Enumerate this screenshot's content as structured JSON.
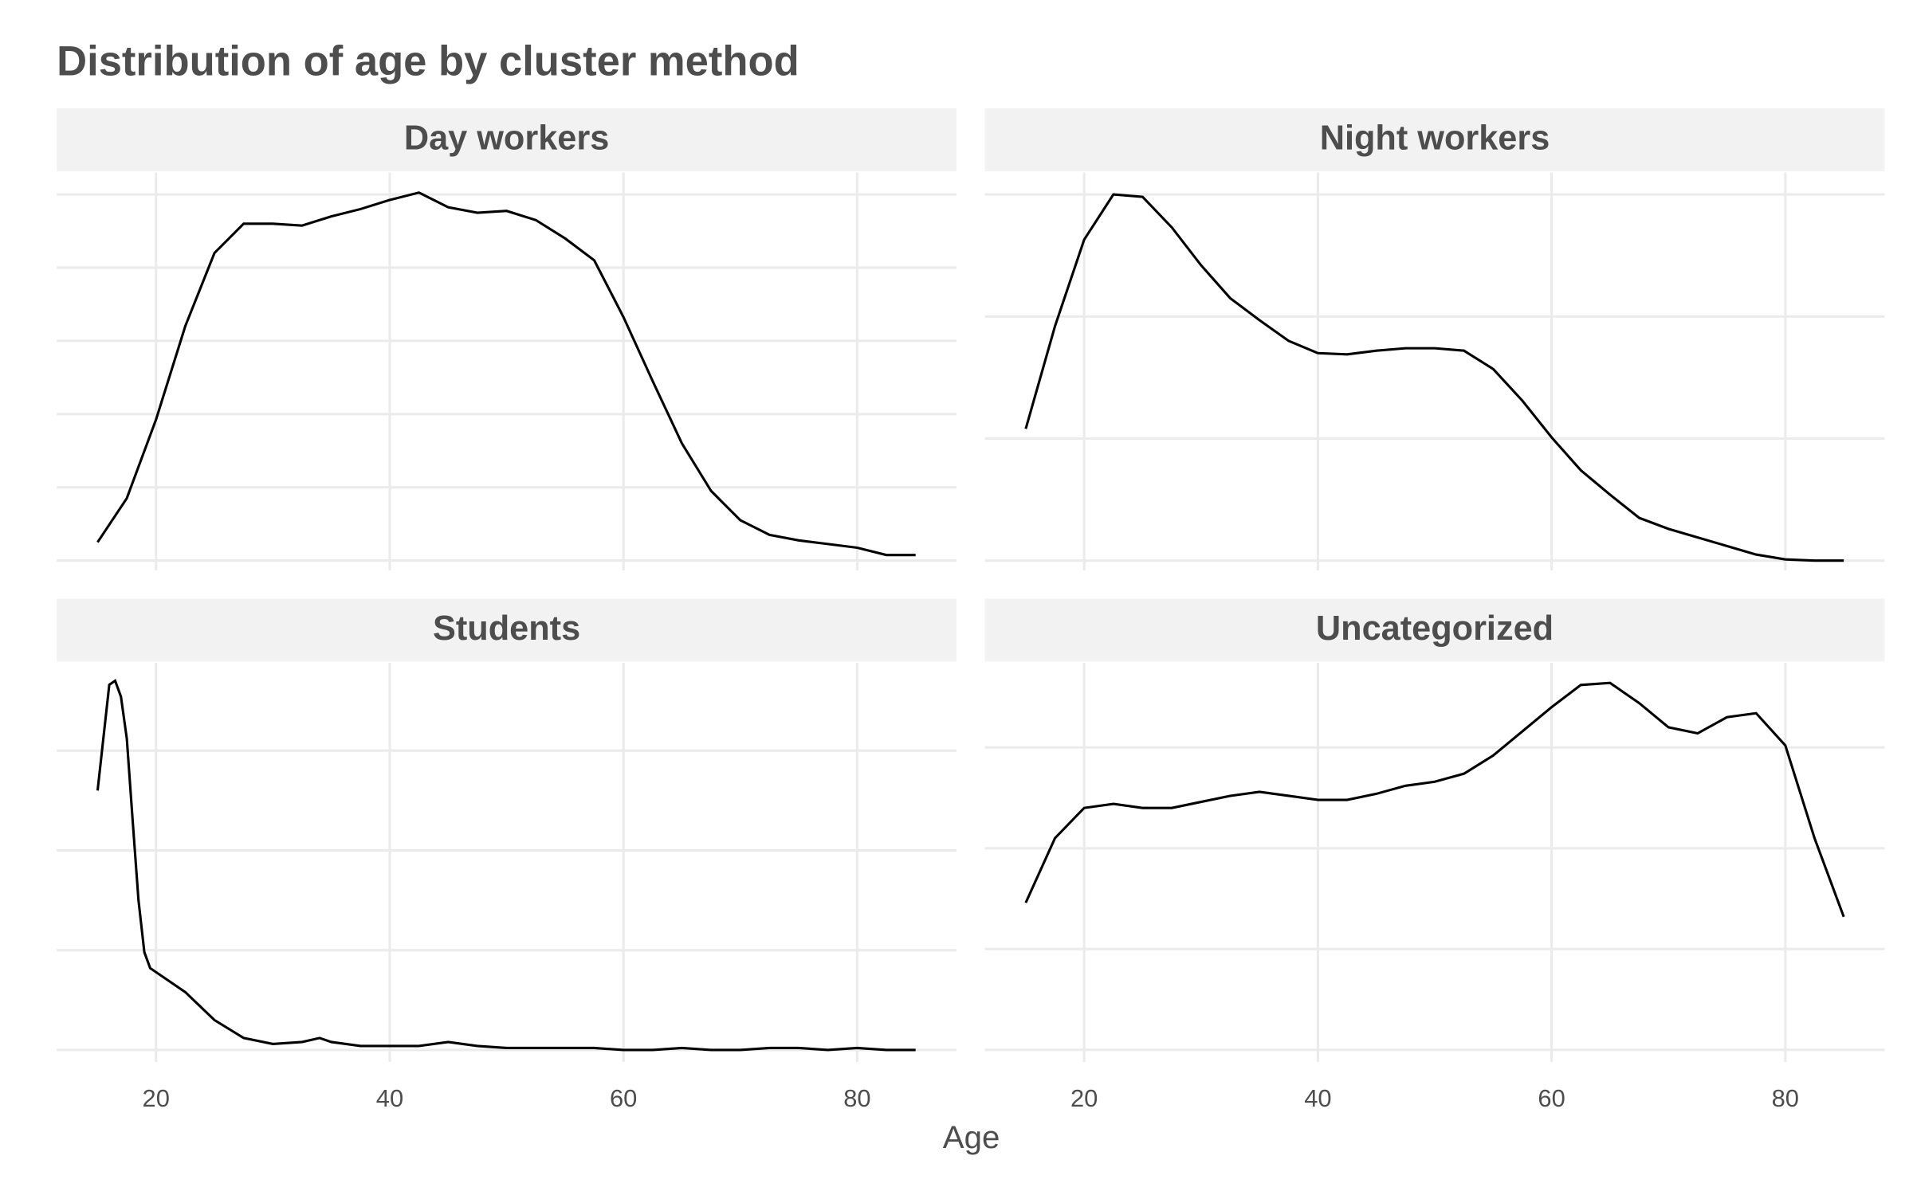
{
  "title": "Distribution of age by cluster method",
  "x_label": "Age",
  "chart_data": [
    {
      "type": "line",
      "title": "Day workers",
      "color": "#000000",
      "grid": true,
      "x": [
        15,
        17.5,
        20,
        22.5,
        25,
        27.5,
        30,
        32.5,
        35,
        37.5,
        40,
        42.5,
        45,
        47.5,
        50,
        52.5,
        55,
        57.5,
        60,
        62.5,
        65,
        67.5,
        70,
        72.5,
        75,
        77.5,
        80,
        82.5,
        85
      ],
      "values": [
        0.001,
        0.0034,
        0.0077,
        0.0128,
        0.0168,
        0.0184,
        0.0184,
        0.0183,
        0.0188,
        0.0192,
        0.0197,
        0.0201,
        0.0193,
        0.019,
        0.0191,
        0.0186,
        0.0176,
        0.0164,
        0.0133,
        0.0098,
        0.0064,
        0.0038,
        0.0022,
        0.0014,
        0.0011,
        0.0009,
        0.0007,
        0.0003,
        0.0003
      ],
      "xlim": [
        11.5,
        88.5
      ],
      "xticks": [
        20,
        40,
        60,
        80
      ],
      "ylim": [
        -0.00054,
        0.0212
      ],
      "yticks": [
        0,
        0.004,
        0.008,
        0.012,
        0.016,
        0.02
      ]
    },
    {
      "type": "line",
      "title": "Night workers",
      "color": "#000000",
      "grid": true,
      "x": [
        15,
        17.5,
        20,
        22.5,
        25,
        27.5,
        30,
        32.5,
        35,
        37.5,
        40,
        42.5,
        45,
        47.5,
        50,
        52.5,
        55,
        57.5,
        60,
        62.5,
        65,
        67.5,
        70,
        72.5,
        75,
        77.5,
        80,
        82.5,
        85
      ],
      "values": [
        0.0108,
        0.0192,
        0.0263,
        0.03,
        0.0298,
        0.0273,
        0.0242,
        0.0215,
        0.0197,
        0.018,
        0.017,
        0.0169,
        0.0172,
        0.0174,
        0.0174,
        0.0172,
        0.0157,
        0.0131,
        0.0101,
        0.0074,
        0.0054,
        0.0035,
        0.0026,
        0.0019,
        0.0012,
        0.0005,
        0.0001,
        0.0,
        0.0
      ],
      "xlim": [
        11.5,
        88.5
      ],
      "xticks": [
        20,
        40,
        60,
        80
      ],
      "ylim": [
        -0.0008,
        0.0318
      ],
      "yticks": [
        0,
        0.01,
        0.02,
        0.03
      ]
    },
    {
      "type": "line",
      "title": "Students",
      "color": "#000000",
      "grid": true,
      "x": [
        15,
        16,
        16.5,
        17,
        17.5,
        18,
        18.5,
        19,
        19.5,
        20,
        22.5,
        25,
        27.5,
        30,
        32.5,
        34,
        35,
        37.5,
        40,
        42.5,
        45,
        47.5,
        50,
        52.5,
        55,
        57.5,
        60,
        62.5,
        65,
        67.5,
        70,
        72.5,
        75,
        77.5,
        80,
        82.5,
        85
      ],
      "values": [
        0.13,
        0.183,
        0.185,
        0.177,
        0.156,
        0.115,
        0.075,
        0.049,
        0.041,
        0.039,
        0.029,
        0.015,
        0.006,
        0.003,
        0.004,
        0.006,
        0.004,
        0.002,
        0.002,
        0.002,
        0.004,
        0.002,
        0.001,
        0.001,
        0.001,
        0.001,
        0.0,
        0.0,
        0.001,
        0.0,
        0.0,
        0.001,
        0.001,
        0.0,
        0.001,
        0.0,
        0.0
      ],
      "xlim": [
        11.5,
        88.5
      ],
      "xticks": [
        20,
        40,
        60,
        80
      ],
      "ylim": [
        -0.006,
        0.194
      ],
      "yticks": [
        0,
        0.05,
        0.1,
        0.15
      ]
    },
    {
      "type": "line",
      "title": "Uncategorized",
      "color": "#000000",
      "grid": true,
      "x": [
        15,
        17.5,
        20,
        22.5,
        25,
        27.5,
        30,
        32.5,
        35,
        37.5,
        40,
        42.5,
        45,
        47.5,
        50,
        52.5,
        55,
        57.5,
        60,
        62.5,
        65,
        67.5,
        70,
        72.5,
        75,
        77.5,
        80,
        82.5,
        85
      ],
      "values": [
        0.0073,
        0.0105,
        0.012,
        0.0122,
        0.012,
        0.012,
        0.0123,
        0.0126,
        0.0128,
        0.0126,
        0.0124,
        0.0124,
        0.0127,
        0.0131,
        0.0133,
        0.0137,
        0.0146,
        0.0158,
        0.017,
        0.0181,
        0.0182,
        0.0172,
        0.016,
        0.0157,
        0.0165,
        0.0167,
        0.0151,
        0.0105,
        0.0066
      ],
      "xlim": [
        11.5,
        88.5
      ],
      "xticks": [
        20,
        40,
        60,
        80
      ],
      "ylim": [
        -0.0006,
        0.0192
      ],
      "yticks": [
        0,
        0.005,
        0.01,
        0.015
      ]
    }
  ]
}
